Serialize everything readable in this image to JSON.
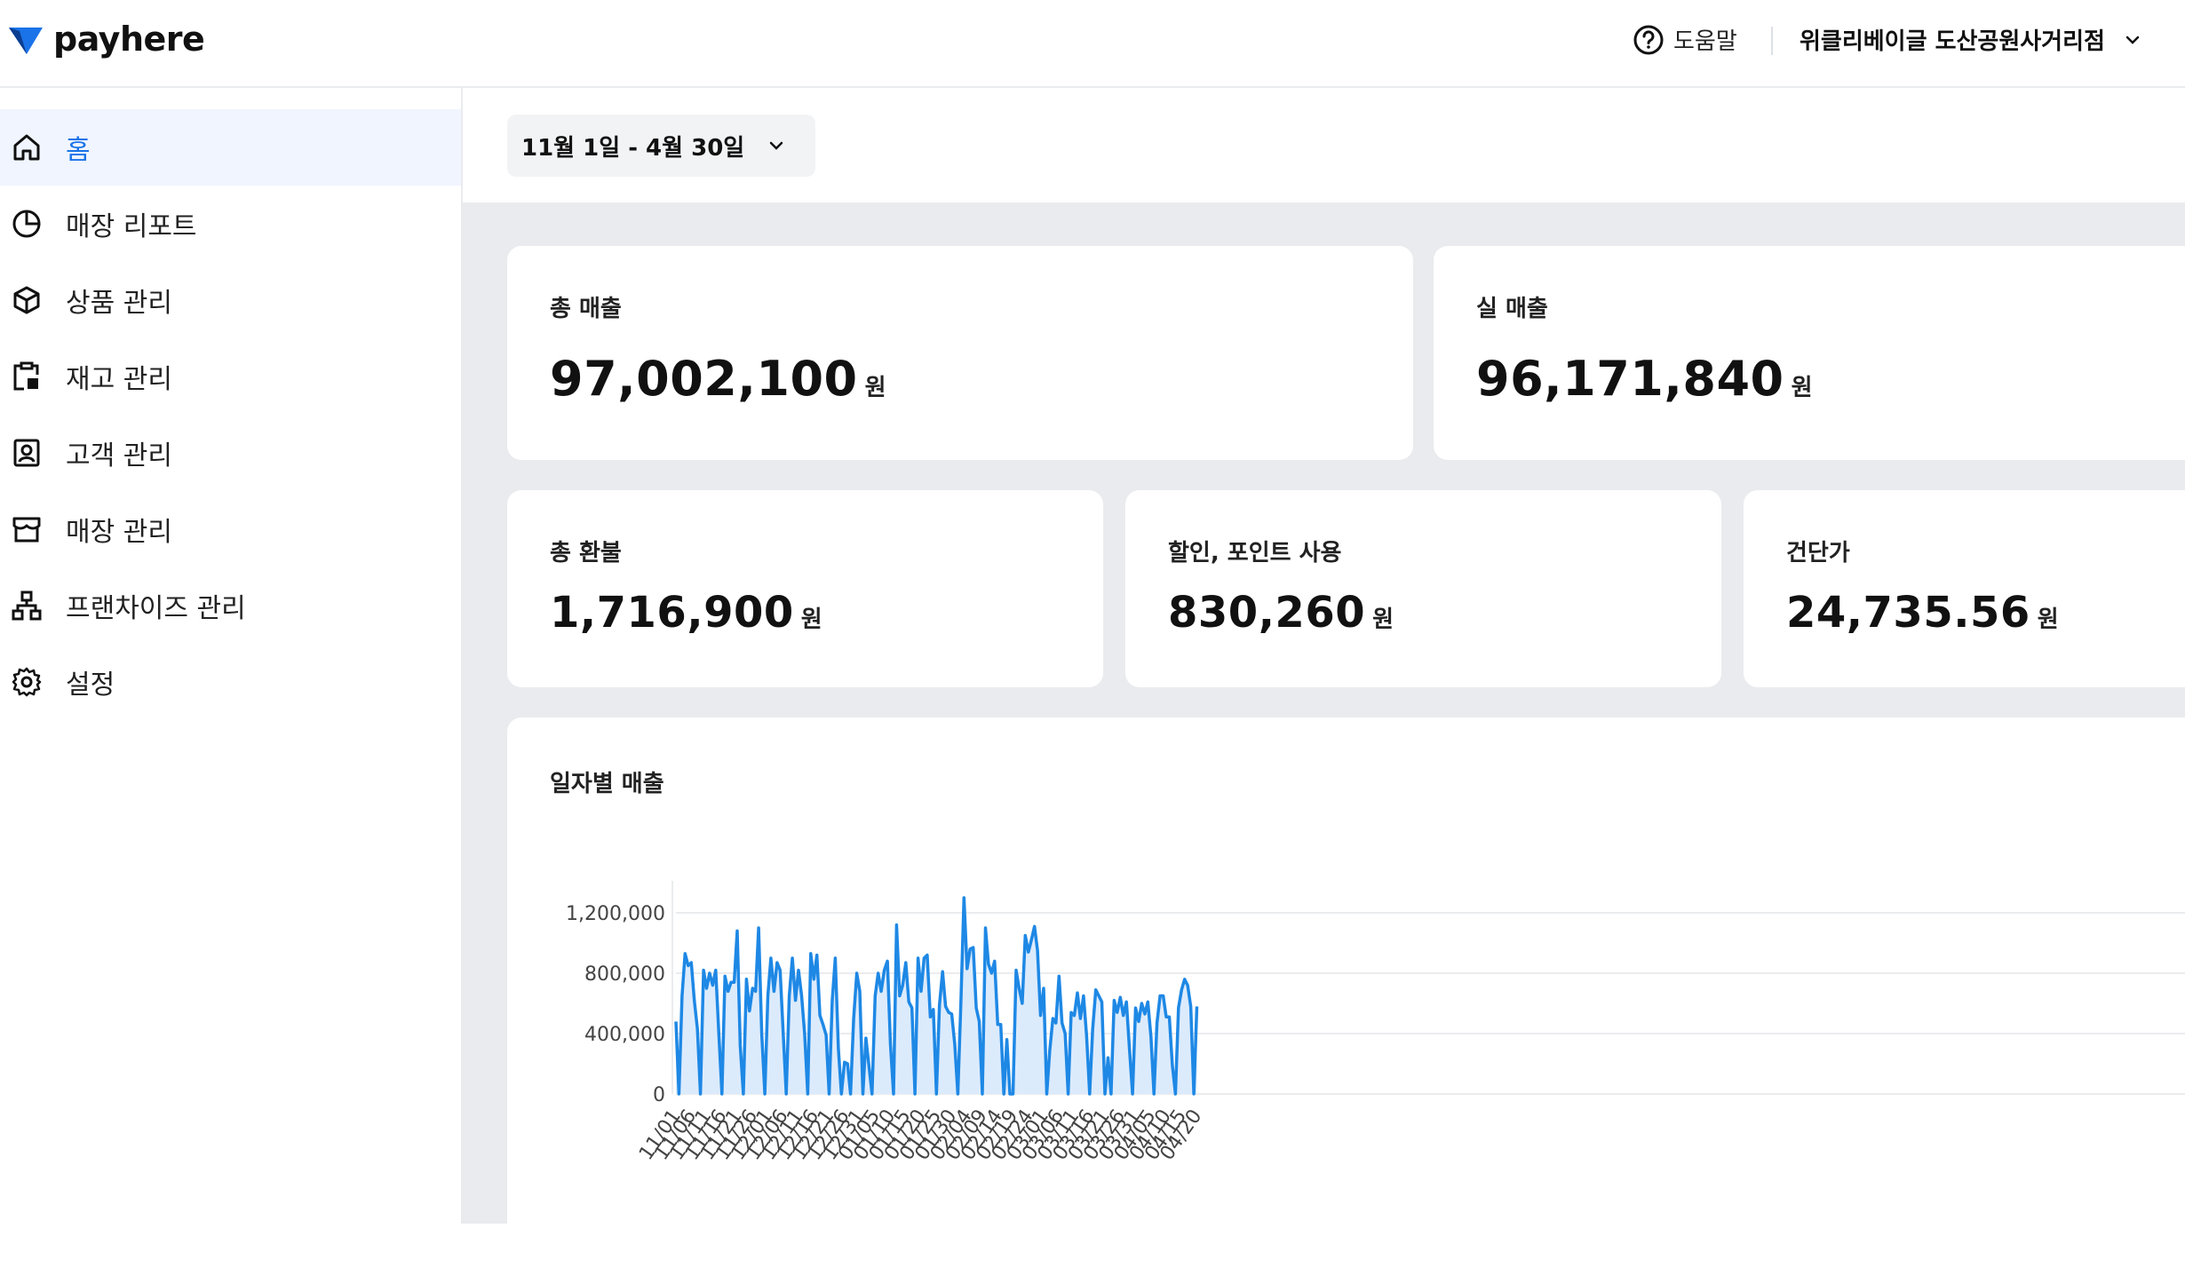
{
  "header": {
    "logo_text": "payhere",
    "help_label": "도움말",
    "store_name": "위클리베이글 도산공원사거리점"
  },
  "sidebar": {
    "items": [
      {
        "label": "홈",
        "icon": "home-icon",
        "active": true
      },
      {
        "label": "매장 리포트",
        "icon": "pie-chart-icon"
      },
      {
        "label": "상품 관리",
        "icon": "box-icon"
      },
      {
        "label": "재고 관리",
        "icon": "clipboard-icon"
      },
      {
        "label": "고객 관리",
        "icon": "contact-icon"
      },
      {
        "label": "매장 관리",
        "icon": "storefront-icon"
      },
      {
        "label": "프랜차이즈 관리",
        "icon": "org-chart-icon"
      },
      {
        "label": "설정",
        "icon": "gear-icon"
      }
    ]
  },
  "filter": {
    "date_range": "11월 1일 - 4월 30일"
  },
  "stats": {
    "total_sales": {
      "label": "총 매출",
      "value": "97,002,100",
      "unit": "원"
    },
    "net_sales": {
      "label": "실 매출",
      "value": "96,171,840",
      "unit": "원"
    },
    "total_refund": {
      "label": "총 환불",
      "value": "1,716,900",
      "unit": "원"
    },
    "discount_points": {
      "label": "할인, 포인트 사용",
      "value": "830,260",
      "unit": "원"
    },
    "avg_ticket": {
      "label": "건단가",
      "value": "24,735.56",
      "unit": "원"
    }
  },
  "colors": {
    "accent": "#1a73e8",
    "line": "#1e88e5",
    "area": "#dcebfc"
  },
  "chart_data": {
    "type": "area",
    "title": "일자별 매출",
    "xlabel": "",
    "ylabel": "",
    "ylim": [
      0,
      1300000
    ],
    "y_ticks": [
      "0",
      "400,000",
      "800,000",
      "1,200,000"
    ],
    "x_ticks": [
      "11/01",
      "11/06",
      "11/11",
      "11/16",
      "11/21",
      "11/26",
      "12/01",
      "12/06",
      "12/11",
      "12/16",
      "12/21",
      "12/26",
      "12/31",
      "01/05",
      "01/10",
      "01/15",
      "01/20",
      "01/25",
      "01/30",
      "02/04",
      "02/09",
      "02/14",
      "02/19",
      "02/24",
      "03/01",
      "03/06",
      "03/11",
      "03/16",
      "03/21",
      "03/26",
      "03/31",
      "04/05",
      "04/10",
      "04/15",
      "04/20"
    ],
    "start_date": "11/01",
    "series": [
      {
        "values": [
          480000,
          0,
          650000,
          930000,
          850000,
          870000,
          620000,
          430000,
          0,
          820000,
          700000,
          800000,
          720000,
          820000,
          400000,
          0,
          780000,
          680000,
          740000,
          740000,
          1080000,
          320000,
          0,
          760000,
          550000,
          700000,
          680000,
          1100000,
          400000,
          0,
          650000,
          900000,
          680000,
          870000,
          820000,
          400000,
          0,
          650000,
          900000,
          620000,
          820000,
          650000,
          400000,
          0,
          930000,
          760000,
          920000,
          520000,
          460000,
          390000,
          0,
          620000,
          900000,
          300000,
          0,
          210000,
          200000,
          0,
          500000,
          800000,
          680000,
          0,
          370000,
          180000,
          0,
          650000,
          800000,
          680000,
          820000,
          880000,
          330000,
          0,
          1120000,
          650000,
          720000,
          870000,
          610000,
          570000,
          0,
          900000,
          680000,
          900000,
          920000,
          510000,
          560000,
          0,
          590000,
          810000,
          580000,
          540000,
          530000,
          330000,
          0,
          620000,
          1300000,
          830000,
          960000,
          970000,
          570000,
          480000,
          0,
          1100000,
          860000,
          800000,
          880000,
          460000,
          460000,
          0,
          360000,
          0,
          0,
          820000,
          700000,
          600000,
          1050000,
          940000,
          1020000,
          1110000,
          950000,
          520000,
          700000,
          0,
          290000,
          500000,
          470000,
          780000,
          470000,
          400000,
          0,
          540000,
          520000,
          670000,
          500000,
          650000,
          390000,
          0,
          430000,
          690000,
          650000,
          610000,
          0,
          240000,
          0,
          620000,
          540000,
          640000,
          520000,
          610000,
          300000,
          0,
          570000,
          480000,
          600000,
          530000,
          610000,
          380000,
          0,
          470000,
          650000,
          650000,
          510000,
          510000,
          190000,
          0,
          570000,
          690000,
          760000,
          720000,
          580000,
          0,
          580000
        ]
      }
    ]
  }
}
